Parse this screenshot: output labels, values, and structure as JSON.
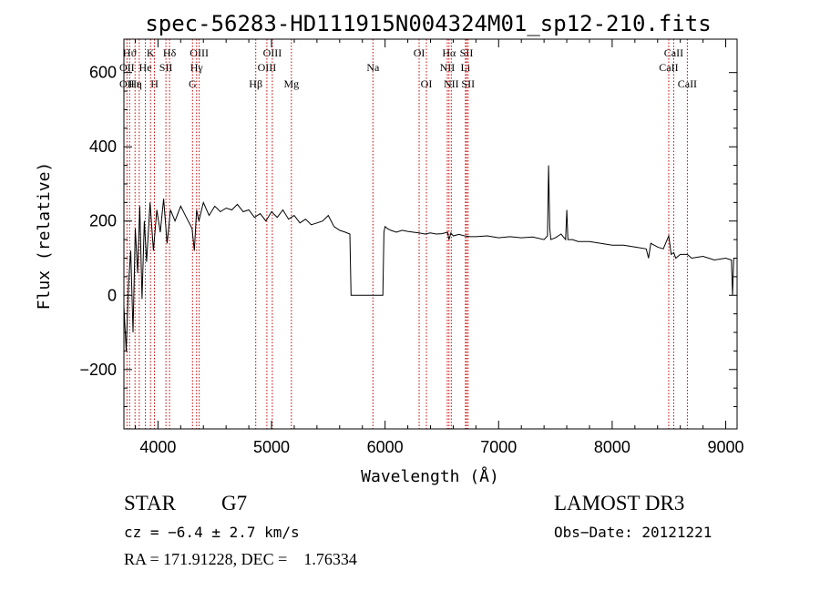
{
  "chart_data": {
    "type": "line",
    "title": "spec-56283-HD111915N004324M01_sp12-210.fits",
    "xlabel": "Wavelength (Å)",
    "ylabel": "Flux (relative)",
    "xlim": [
      3700,
      9100
    ],
    "ylim": [
      -360,
      690
    ],
    "xticks": [
      4000,
      5000,
      6000,
      7000,
      8000,
      9000
    ],
    "xtick_labels": [
      "4000",
      "5000",
      "6000",
      "7000",
      "8000",
      "9000"
    ],
    "yticks": [
      -200,
      0,
      200,
      400,
      600
    ],
    "ytick_labels": [
      "−200",
      "0",
      "200",
      "400",
      "600"
    ],
    "series": [
      {
        "name": "spectrum",
        "x": [
          3700,
          3720,
          3740,
          3760,
          3780,
          3800,
          3820,
          3840,
          3860,
          3880,
          3900,
          3930,
          3960,
          3990,
          4020,
          4050,
          4080,
          4110,
          4150,
          4200,
          4250,
          4300,
          4320,
          4340,
          4360,
          4400,
          4450,
          4500,
          4550,
          4600,
          4650,
          4700,
          4750,
          4800,
          4850,
          4900,
          4950,
          5000,
          5050,
          5100,
          5150,
          5200,
          5250,
          5300,
          5350,
          5400,
          5450,
          5500,
          5550,
          5600,
          5650,
          5690,
          5700,
          5800,
          5900,
          5980,
          5990,
          6000,
          6020,
          6050,
          6100,
          6150,
          6200,
          6250,
          6300,
          6350,
          6400,
          6450,
          6500,
          6550,
          6563,
          6580,
          6600,
          6650,
          6700,
          6750,
          6800,
          6900,
          7000,
          7100,
          7200,
          7300,
          7400,
          7430,
          7440,
          7450,
          7460,
          7500,
          7550,
          7590,
          7600,
          7610,
          7650,
          7700,
          7800,
          7900,
          8000,
          8100,
          8200,
          8300,
          8320,
          8340,
          8400,
          8450,
          8498,
          8520,
          8542,
          8560,
          8600,
          8662,
          8700,
          8800,
          8900,
          9000,
          9050,
          9060,
          9070
        ],
        "y": [
          -30,
          -150,
          30,
          120,
          -100,
          180,
          60,
          240,
          -10,
          200,
          90,
          250,
          120,
          230,
          170,
          260,
          140,
          230,
          200,
          240,
          210,
          180,
          120,
          230,
          200,
          250,
          215,
          240,
          225,
          235,
          230,
          245,
          225,
          230,
          210,
          220,
          200,
          225,
          210,
          230,
          205,
          215,
          195,
          205,
          190,
          195,
          200,
          215,
          185,
          175,
          170,
          165,
          0,
          0,
          0,
          0,
          170,
          185,
          180,
          175,
          170,
          175,
          172,
          170,
          168,
          165,
          168,
          165,
          166,
          170,
          150,
          168,
          160,
          164,
          160,
          158,
          158,
          160,
          155,
          158,
          155,
          157,
          150,
          160,
          350,
          180,
          150,
          155,
          165,
          150,
          230,
          150,
          150,
          145,
          145,
          140,
          135,
          135,
          130,
          125,
          100,
          140,
          130,
          125,
          160,
          110,
          115,
          100,
          110,
          110,
          100,
          105,
          95,
          100,
          95,
          0,
          100
        ]
      }
    ],
    "line_markers": [
      {
        "label": "Hϑ",
        "wl": 3750,
        "row": 1
      },
      {
        "label": "OII",
        "wl": 3727,
        "row": 2
      },
      {
        "label": "OII",
        "wl": 3727,
        "row": 3
      },
      {
        "label": "Hε",
        "wl": 3798,
        "row": 3
      },
      {
        "label": "He",
        "wl": 3889,
        "row": 2
      },
      {
        "label": "K",
        "wl": 3934,
        "row": 1
      },
      {
        "label": "η",
        "wl": 3835,
        "row": 3
      },
      {
        "label": "H",
        "wl": 3969,
        "row": 3
      },
      {
        "label": "SII",
        "wl": 4070,
        "row": 2
      },
      {
        "label": "Hδ",
        "wl": 4102,
        "row": 1
      },
      {
        "label": "OIII",
        "wl": 4363,
        "row": 1
      },
      {
        "label": "Hγ",
        "wl": 4340,
        "row": 2
      },
      {
        "label": "G",
        "wl": 4304,
        "row": 3
      },
      {
        "label": "Hβ",
        "wl": 4861,
        "row": 3
      },
      {
        "label": "OIII",
        "wl": 4959,
        "row": 2
      },
      {
        "label": "OIII",
        "wl": 5007,
        "row": 1
      },
      {
        "label": "Mg",
        "wl": 5175,
        "row": 3
      },
      {
        "label": "Na",
        "wl": 5893,
        "row": 2
      },
      {
        "label": "OI",
        "wl": 6300,
        "row": 1
      },
      {
        "label": "OI",
        "wl": 6364,
        "row": 3
      },
      {
        "label": "Hα",
        "wl": 6563,
        "row": 1
      },
      {
        "label": "NII",
        "wl": 6548,
        "row": 2
      },
      {
        "label": "NII",
        "wl": 6583,
        "row": 3
      },
      {
        "label": "SII",
        "wl": 6717,
        "row": 1
      },
      {
        "label": "Li",
        "wl": 6708,
        "row": 2
      },
      {
        "label": "SII",
        "wl": 6731,
        "row": 3
      },
      {
        "label": "CaII",
        "wl": 8542,
        "row": 1
      },
      {
        "label": "CaII",
        "wl": 8498,
        "row": 2
      },
      {
        "label": "CaII",
        "wl": 8662,
        "row": 3
      }
    ],
    "line_color": "#000000",
    "marker_color": "#cc0000"
  },
  "info": {
    "class": "STAR",
    "subclass": "G7",
    "survey": "LAMOST DR3",
    "cz": "cz = −6.4 ± 2.7 km/s",
    "obs_date": "Obs−Date: 20121221",
    "radec": "RA = 171.91228, DEC =    1.76334"
  }
}
